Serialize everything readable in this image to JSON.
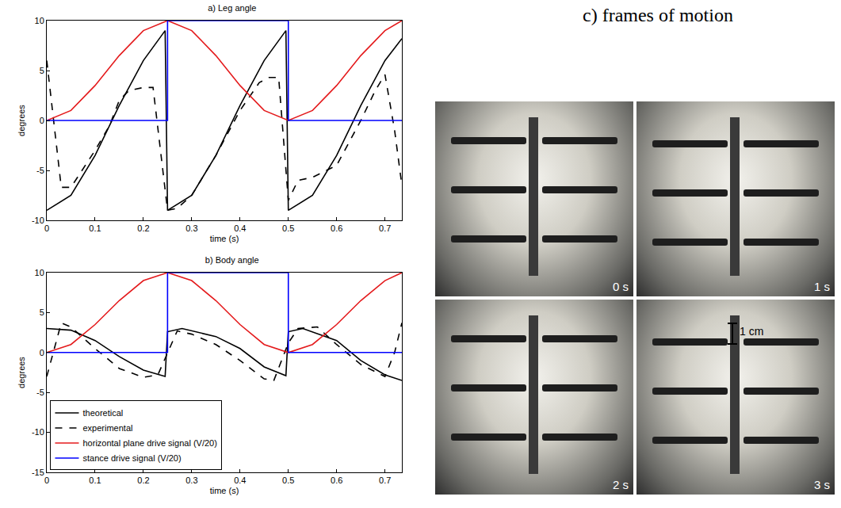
{
  "chart_data": [
    {
      "type": "line",
      "title": "a) Leg angle",
      "x_label": "time (s)",
      "y_label": "degrees",
      "xlim": [
        0,
        0.735
      ],
      "xticks": [
        0,
        0.1,
        0.2,
        0.3,
        0.4,
        0.5,
        0.6,
        0.7
      ],
      "ylim": [
        -10,
        10
      ],
      "yticks": [
        -10,
        -5,
        0,
        5,
        10
      ],
      "grid": false,
      "series": [
        {
          "name": "theoretical",
          "color": "#000000",
          "line_style": "solid",
          "x": [
            0,
            0.05,
            0.1,
            0.15,
            0.2,
            0.245,
            0.25,
            0.3,
            0.35,
            0.4,
            0.45,
            0.495,
            0.5,
            0.55,
            0.6,
            0.65,
            0.7,
            0.735
          ],
          "values": [
            -9,
            -7.5,
            -3.5,
            1.5,
            6,
            9,
            -9,
            -7.5,
            -3.5,
            1.5,
            6,
            9,
            -9,
            -7.5,
            -3.5,
            1.5,
            6,
            8.2
          ]
        },
        {
          "name": "experimental",
          "color": "#000000",
          "line_style": "dashed",
          "x": [
            0,
            0.03,
            0.05,
            0.08,
            0.1,
            0.13,
            0.15,
            0.17,
            0.2,
            0.22,
            0.25,
            0.27,
            0.3,
            0.35,
            0.4,
            0.44,
            0.46,
            0.48,
            0.5,
            0.52,
            0.55,
            0.6,
            0.65,
            0.68,
            0.7,
            0.72,
            0.735
          ],
          "values": [
            6,
            -6.7,
            -6.7,
            -4.5,
            -3,
            -0.5,
            2,
            3,
            3.3,
            3.3,
            -9,
            -8.8,
            -7.5,
            -3.5,
            1,
            3.8,
            4.3,
            4.3,
            -8,
            -6,
            -5.7,
            -4.5,
            0,
            3,
            4.6,
            -1,
            -6.5
          ]
        },
        {
          "name": "horizontal plane drive signal (V/20)",
          "color": "#e41a1c",
          "line_style": "solid",
          "x": [
            0,
            0.05,
            0.1,
            0.15,
            0.2,
            0.25,
            0.3,
            0.35,
            0.4,
            0.45,
            0.5,
            0.55,
            0.6,
            0.65,
            0.7,
            0.735
          ],
          "values": [
            0,
            1,
            3.5,
            6.5,
            9,
            10,
            9,
            6.5,
            3.5,
            1,
            0,
            1,
            3.5,
            6.5,
            9,
            10
          ]
        },
        {
          "name": "stance drive signal (V/20)",
          "color": "#0000ff",
          "line_style": "solid",
          "x": [
            0,
            0.25,
            0.25,
            0.5,
            0.5,
            0.735
          ],
          "values": [
            0,
            0,
            10,
            10,
            0,
            0
          ]
        }
      ]
    },
    {
      "type": "line",
      "title": "b) Body angle",
      "x_label": "time (s)",
      "y_label": "degrees",
      "xlim": [
        0,
        0.735
      ],
      "xticks": [
        0,
        0.1,
        0.2,
        0.3,
        0.4,
        0.5,
        0.6,
        0.7
      ],
      "ylim": [
        -15,
        10
      ],
      "yticks": [
        -15,
        -10,
        -5,
        0,
        5,
        10
      ],
      "grid": false,
      "legend": "lower left",
      "series": [
        {
          "name": "theoretical",
          "color": "#000000",
          "line_style": "solid",
          "x": [
            0,
            0.05,
            0.1,
            0.15,
            0.2,
            0.245,
            0.25,
            0.28,
            0.35,
            0.4,
            0.45,
            0.495,
            0.5,
            0.53,
            0.6,
            0.65,
            0.7,
            0.735
          ],
          "values": [
            3,
            2.8,
            1.5,
            -0.5,
            -2.2,
            -3,
            2.6,
            3,
            2,
            0.5,
            -1.8,
            -2.9,
            2.6,
            3,
            1.5,
            -1,
            -2.8,
            -3.5
          ]
        },
        {
          "name": "experimental",
          "color": "#000000",
          "line_style": "dashed",
          "x": [
            0,
            0.03,
            0.05,
            0.1,
            0.15,
            0.2,
            0.23,
            0.25,
            0.27,
            0.3,
            0.35,
            0.4,
            0.45,
            0.47,
            0.5,
            0.52,
            0.56,
            0.6,
            0.65,
            0.7,
            0.72,
            0.735
          ],
          "values": [
            -3,
            3.7,
            3.2,
            0.5,
            -2,
            -3.1,
            -2.8,
            0,
            2.7,
            2.3,
            1,
            -1,
            -3.3,
            -3.5,
            1.2,
            3,
            3.2,
            1,
            -1.5,
            -3,
            0,
            3.7
          ]
        },
        {
          "name": "horizontal plane drive signal (V/20)",
          "color": "#e41a1c",
          "line_style": "solid",
          "x": [
            0,
            0.05,
            0.1,
            0.15,
            0.2,
            0.25,
            0.3,
            0.35,
            0.4,
            0.45,
            0.5,
            0.55,
            0.6,
            0.65,
            0.7,
            0.735
          ],
          "values": [
            0,
            1,
            3.5,
            6.5,
            9,
            10,
            9,
            6.5,
            3.5,
            1,
            0,
            1,
            3.5,
            6.5,
            9,
            10
          ]
        },
        {
          "name": "stance drive signal (V/20)",
          "color": "#0000ff",
          "line_style": "solid",
          "x": [
            0,
            0.25,
            0.25,
            0.5,
            0.5,
            0.735
          ],
          "values": [
            0,
            0,
            10,
            10,
            0,
            0
          ]
        }
      ]
    }
  ],
  "panel_c": {
    "title": "c) frames of motion",
    "frames": [
      {
        "label": "0 s"
      },
      {
        "label": "1 s"
      },
      {
        "label": "2 s"
      },
      {
        "label": "3 s"
      }
    ],
    "scale_bar": {
      "label": "1 cm",
      "frame": 3
    }
  }
}
